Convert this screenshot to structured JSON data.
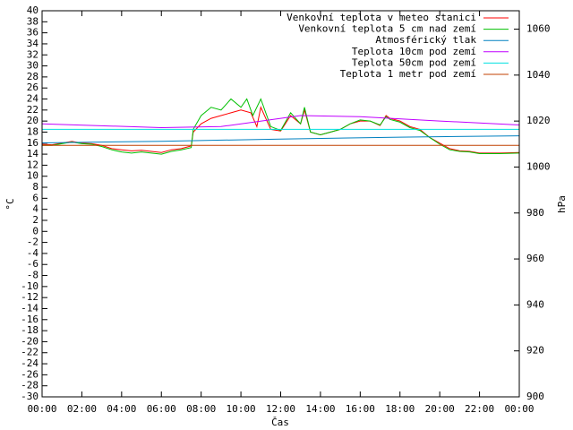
{
  "chart_data": {
    "type": "line",
    "xlabel": "Čas",
    "ylabel": "°C",
    "y2label": "hPa",
    "xlim": [
      0,
      24
    ],
    "xticks": [
      {
        "value": 0,
        "label": "00:00"
      },
      {
        "value": 2,
        "label": "02:00"
      },
      {
        "value": 4,
        "label": "04:00"
      },
      {
        "value": 6,
        "label": "06:00"
      },
      {
        "value": 8,
        "label": "08:00"
      },
      {
        "value": 10,
        "label": "10:00"
      },
      {
        "value": 12,
        "label": "12:00"
      },
      {
        "value": 14,
        "label": "14:00"
      },
      {
        "value": 16,
        "label": "16:00"
      },
      {
        "value": 18,
        "label": "18:00"
      },
      {
        "value": 20,
        "label": "20:00"
      },
      {
        "value": 22,
        "label": "22:00"
      },
      {
        "value": 24,
        "label": "00:00"
      }
    ],
    "ylim": [
      -30,
      40
    ],
    "yticks": [
      -30,
      -28,
      -26,
      -24,
      -22,
      -20,
      -18,
      -16,
      -14,
      -12,
      -10,
      -8,
      -6,
      -4,
      -2,
      0,
      2,
      4,
      6,
      8,
      10,
      12,
      14,
      16,
      18,
      20,
      22,
      24,
      26,
      28,
      30,
      32,
      34,
      36,
      38,
      40
    ],
    "y2lim": [
      900,
      1068
    ],
    "y2ticks": [
      900,
      920,
      940,
      960,
      980,
      1000,
      1020,
      1040,
      1060
    ],
    "legend": "top-right",
    "series": [
      {
        "name": "Venkovní teplota v meteo stanici",
        "color": "#ff0000",
        "x": [
          0,
          0.5,
          1,
          1.5,
          2,
          2.5,
          3,
          3.5,
          4,
          4.5,
          5,
          5.5,
          6,
          6.5,
          7,
          7.5,
          7.6,
          8,
          8.5,
          9,
          9.5,
          10,
          10.5,
          10.8,
          11,
          11.5,
          12,
          12.5,
          13,
          13.2,
          13.5,
          14,
          14.5,
          15,
          15.5,
          16,
          16.5,
          17,
          17.3,
          17.5,
          18,
          18.5,
          19,
          19.5,
          20,
          20.5,
          21,
          21.5,
          22,
          23,
          24
        ],
        "values": [
          15.8,
          15.7,
          16.0,
          16.3,
          16.0,
          15.9,
          15.6,
          15.0,
          14.8,
          14.6,
          14.7,
          14.5,
          14.3,
          14.8,
          15.0,
          15.5,
          18.0,
          19.5,
          20.5,
          21.0,
          21.5,
          22.0,
          21.5,
          19.0,
          22.5,
          18.5,
          18.2,
          21.0,
          19.5,
          22.0,
          18.0,
          17.5,
          18.0,
          18.5,
          19.5,
          20.0,
          20.0,
          19.2,
          21.0,
          20.5,
          20.0,
          19.0,
          18.5,
          17.0,
          16.0,
          15.0,
          14.6,
          14.5,
          14.2,
          14.2,
          14.3
        ]
      },
      {
        "name": "Venkovní teplota 5 cm nad zemí",
        "color": "#00c000",
        "x": [
          0,
          0.5,
          1,
          1.5,
          2,
          2.5,
          3,
          3.5,
          4,
          4.5,
          5,
          5.5,
          6,
          6.5,
          7,
          7.5,
          7.6,
          8,
          8.5,
          9,
          9.5,
          10,
          10.3,
          10.6,
          11,
          11.5,
          12,
          12.5,
          13,
          13.2,
          13.5,
          14,
          14.5,
          15,
          15.5,
          16,
          16.5,
          17,
          17.3,
          17.5,
          18,
          18.5,
          19,
          19.5,
          20,
          20.5,
          21,
          21.5,
          22,
          23,
          24
        ],
        "values": [
          15.6,
          15.6,
          15.9,
          16.2,
          15.9,
          15.8,
          15.4,
          14.8,
          14.4,
          14.2,
          14.4,
          14.2,
          14.0,
          14.5,
          14.8,
          15.2,
          18.5,
          21.0,
          22.5,
          22.0,
          24.0,
          22.5,
          24.0,
          21.0,
          24.0,
          19.0,
          18.3,
          21.5,
          19.5,
          22.5,
          18.0,
          17.5,
          18.0,
          18.5,
          19.5,
          20.2,
          20.0,
          19.3,
          20.8,
          20.3,
          19.8,
          18.8,
          18.3,
          17.0,
          15.8,
          14.8,
          14.5,
          14.4,
          14.1,
          14.1,
          14.2
        ]
      },
      {
        "name": "Atmosférický tlak",
        "color": "#0080c0",
        "axis": "y2",
        "x": [
          0,
          6,
          12,
          18,
          24
        ],
        "values": [
          1010.5,
          1011.2,
          1012.2,
          1013.0,
          1013.6
        ]
      },
      {
        "name": "Teplota 10cm pod zemí",
        "color": "#c000ff",
        "x": [
          0,
          6,
          9,
          12,
          13,
          16,
          20,
          24
        ],
        "values": [
          19.5,
          18.8,
          19.0,
          20.5,
          21.0,
          20.8,
          20.0,
          19.3
        ]
      },
      {
        "name": "Teplota 50cm pod zemí",
        "color": "#00e0e0",
        "x": [
          0,
          24
        ],
        "values": [
          18.5,
          18.5
        ]
      },
      {
        "name": "Teplota 1 metr pod zemí",
        "color": "#c04000",
        "x": [
          0,
          24
        ],
        "values": [
          15.6,
          15.6
        ]
      }
    ]
  }
}
